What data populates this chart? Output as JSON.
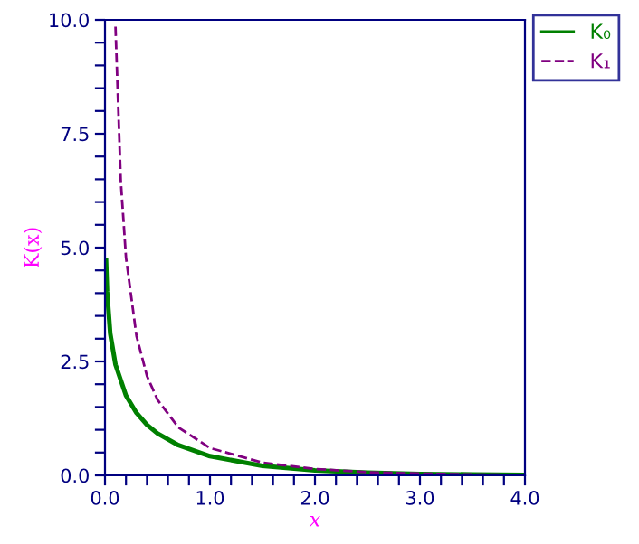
{
  "chart_data": {
    "type": "line",
    "xlabel": "x",
    "ylabel": "K(x)",
    "legend": "top right",
    "grid": false,
    "xlim": [
      0,
      4
    ],
    "ylim": [
      0,
      10
    ],
    "xticks": [
      {
        "value": 0,
        "label": "0.0"
      },
      {
        "value": 0.2,
        "label": null
      },
      {
        "value": 0.4,
        "label": null
      },
      {
        "value": 0.6,
        "label": null
      },
      {
        "value": 0.8,
        "label": null
      },
      {
        "value": 1,
        "label": "1.0"
      },
      {
        "value": 1.2,
        "label": null
      },
      {
        "value": 1.4,
        "label": null
      },
      {
        "value": 1.6,
        "label": null
      },
      {
        "value": 1.8,
        "label": null
      },
      {
        "value": 2,
        "label": "2.0"
      },
      {
        "value": 2.2,
        "label": null
      },
      {
        "value": 2.4,
        "label": null
      },
      {
        "value": 2.6,
        "label": null
      },
      {
        "value": 2.8,
        "label": null
      },
      {
        "value": 3,
        "label": "3.0"
      },
      {
        "value": 3.2,
        "label": null
      },
      {
        "value": 3.4,
        "label": null
      },
      {
        "value": 3.6,
        "label": null
      },
      {
        "value": 3.8,
        "label": null
      },
      {
        "value": 4,
        "label": "4.0"
      }
    ],
    "yticks": [
      {
        "value": 0,
        "label": "0.0"
      },
      {
        "value": 0.5,
        "label": null
      },
      {
        "value": 1,
        "label": null
      },
      {
        "value": 1.5,
        "label": null
      },
      {
        "value": 2,
        "label": null
      },
      {
        "value": 2.5,
        "label": "2.5"
      },
      {
        "value": 3,
        "label": null
      },
      {
        "value": 3.5,
        "label": null
      },
      {
        "value": 4,
        "label": null
      },
      {
        "value": 4.5,
        "label": null
      },
      {
        "value": 5,
        "label": "5.0"
      },
      {
        "value": 5.5,
        "label": null
      },
      {
        "value": 6,
        "label": null
      },
      {
        "value": 6.5,
        "label": null
      },
      {
        "value": 7,
        "label": null
      },
      {
        "value": 7.5,
        "label": "7.5"
      },
      {
        "value": 8,
        "label": null
      },
      {
        "value": 8.5,
        "label": null
      },
      {
        "value": 9,
        "label": null
      },
      {
        "value": 9.5,
        "label": null
      },
      {
        "value": 10,
        "label": "10.0"
      }
    ],
    "series": [
      {
        "name": "K₀",
        "color": "#008000",
        "line_style": "solid",
        "x": [
          0.01,
          0.02,
          0.05,
          0.1,
          0.2,
          0.3,
          0.4,
          0.5,
          0.7,
          1.0,
          1.5,
          2.0,
          2.5,
          3.0,
          3.5,
          4.0
        ],
        "values": [
          4.72,
          4.03,
          3.11,
          2.43,
          1.75,
          1.37,
          1.11,
          0.92,
          0.66,
          0.42,
          0.21,
          0.11,
          0.06,
          0.03,
          0.02,
          0.01
        ]
      },
      {
        "name": "K₁",
        "color": "#800080",
        "line_style": "dashed",
        "x": [
          0.1,
          0.15,
          0.2,
          0.3,
          0.4,
          0.5,
          0.7,
          1.0,
          1.5,
          2.0,
          2.5,
          3.0,
          3.5,
          4.0
        ],
        "values": [
          9.85,
          6.48,
          4.78,
          3.06,
          2.18,
          1.66,
          1.05,
          0.6,
          0.28,
          0.14,
          0.07,
          0.04,
          0.02,
          0.01
        ]
      }
    ]
  }
}
